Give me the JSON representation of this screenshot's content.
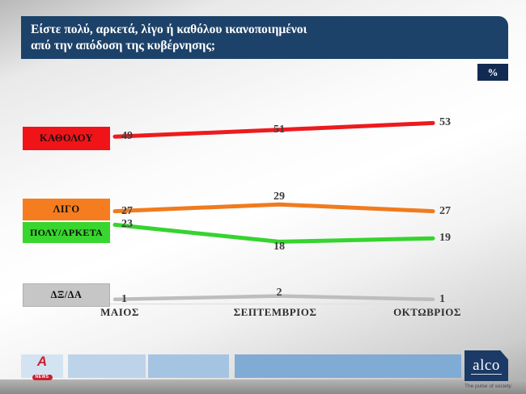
{
  "title": {
    "line1": "Είστε πολύ, αρκετά, λίγο ή καθόλου ικανοποιημένοι",
    "line2": "από την απόδοση της κυβέρνησης;"
  },
  "percent_badge": "%",
  "chart_data": {
    "type": "line",
    "unit": "%",
    "title": "Είστε πολύ, αρκετά, λίγο ή καθόλου ικανοποιημένοι από την απόδοση της κυβέρνησης;",
    "categories": [
      "ΜΑΙΟΣ",
      "ΣΕΠΤΕΜΒΡΙΟΣ",
      "ΟΚΤΩΒΡΙΟΣ"
    ],
    "series": [
      {
        "name": "ΚΑΘΟΛΟΥ",
        "color": "#ed1b1e",
        "legend_color": "#f01418",
        "values": [
          49,
          51,
          53
        ]
      },
      {
        "name": "ΛΙΓΟ",
        "color": "#f07b1e",
        "legend_color": "#f57d1f",
        "values": [
          27,
          29,
          27
        ]
      },
      {
        "name": "ΠΟΛΥ/ΑΡΚΕΤΑ",
        "color": "#35d42e",
        "legend_color": "#38d62e",
        "values": [
          23,
          18,
          19
        ]
      },
      {
        "name": "ΔΞ/ΔΑ",
        "color": "#bdbdbd",
        "legend_color": "#c6c6c6",
        "values": [
          1,
          2,
          1
        ]
      }
    ],
    "legend_position": "left",
    "grid": false,
    "ylim": [
      0,
      60
    ]
  },
  "footer": {
    "alpha_logo": {
      "letter": "A",
      "badge": "NEWS"
    },
    "alco_logo": {
      "name": "alco",
      "tagline": "The pulse of society"
    }
  }
}
